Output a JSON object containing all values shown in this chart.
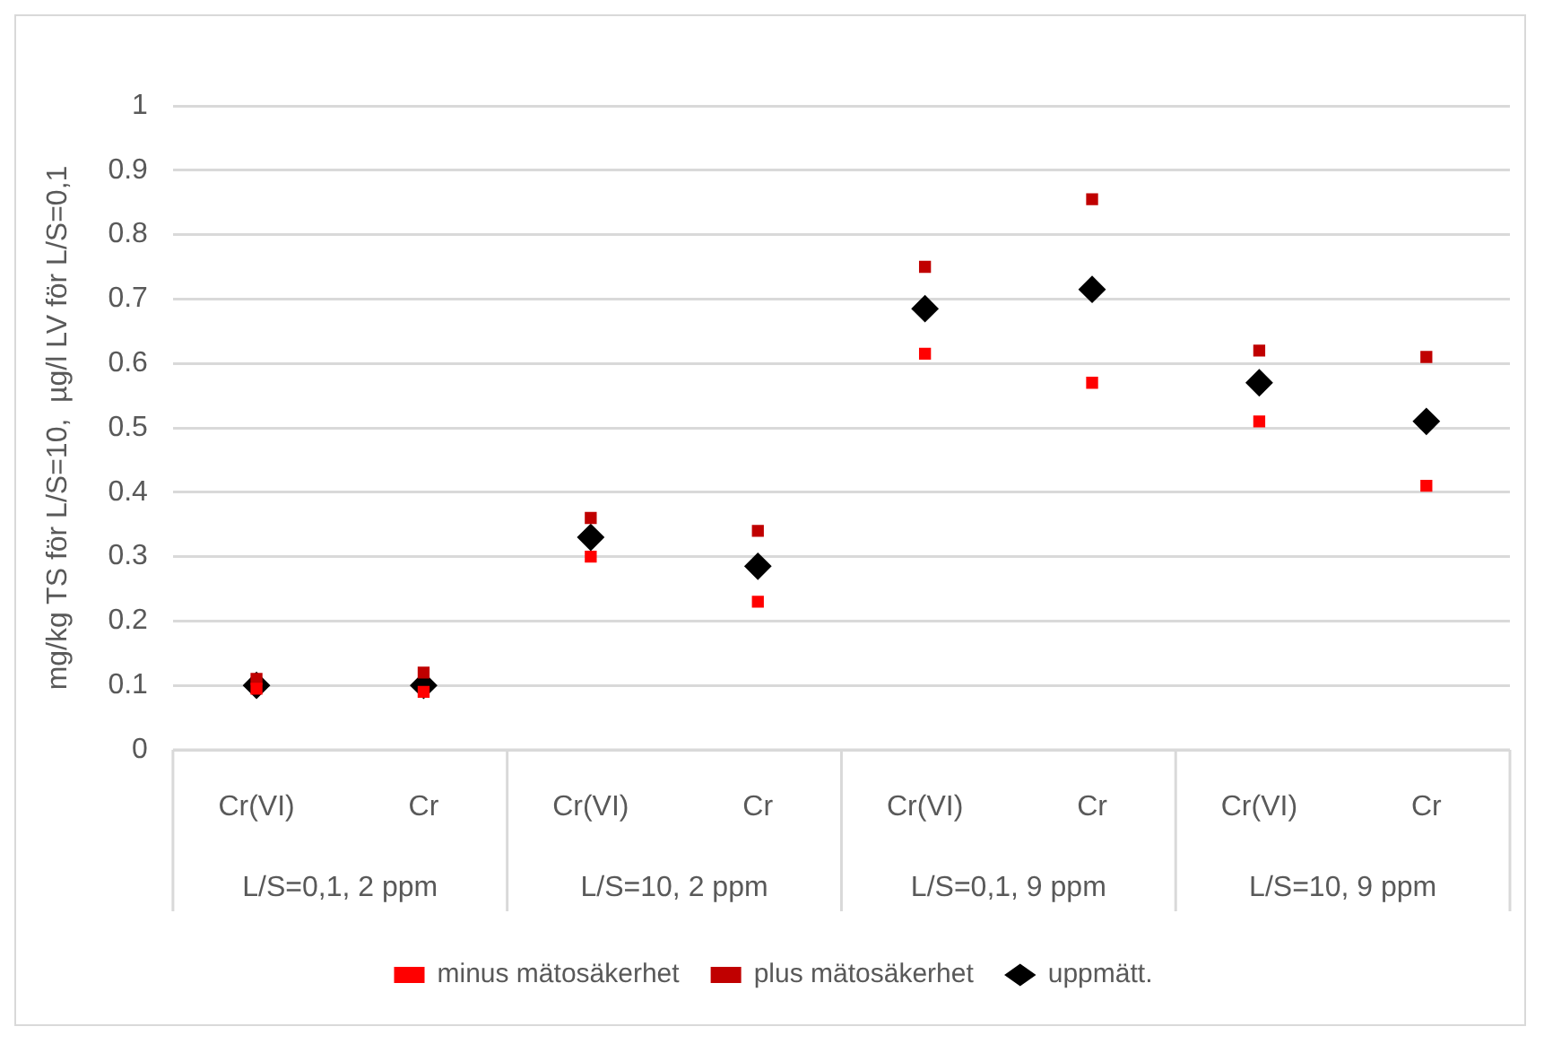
{
  "chart_data": {
    "type": "scatter",
    "ylabel": "mg/kg TS för L/S=10,  µg/l LV för L/S=0,1",
    "categories": [
      "Cr(VI)",
      "Cr",
      "Cr(VI)",
      "Cr",
      "Cr(VI)",
      "Cr",
      "Cr(VI)",
      "Cr"
    ],
    "annotations": [
      "L/S=0,1, 2 ppm",
      "L/S=10, 2 ppm",
      "L/S=0,1, 9 ppm",
      "L/S=10, 9 ppm"
    ],
    "series": [
      {
        "name": "minus mätosäkerhet",
        "color": "#ff0000",
        "marker": "square",
        "values": [
          0.095,
          0.09,
          0.3,
          0.23,
          0.615,
          0.57,
          0.51,
          0.41
        ]
      },
      {
        "name": "uppmätt.",
        "color": "#000000",
        "marker": "diamond",
        "values": [
          0.1,
          0.1,
          0.33,
          0.285,
          0.685,
          0.715,
          0.57,
          0.51
        ]
      },
      {
        "name": "plus mätosäkerhet",
        "color": "#c00000",
        "marker": "square",
        "values": [
          0.11,
          0.12,
          0.36,
          0.34,
          0.75,
          0.855,
          0.62,
          0.61
        ]
      }
    ],
    "ylim": [
      0,
      1
    ],
    "yticks": [
      0,
      0.1,
      0.2,
      0.3,
      0.4,
      0.5,
      0.6,
      0.7,
      0.8,
      0.9,
      1
    ],
    "grid": "y",
    "legend": "bottom"
  }
}
